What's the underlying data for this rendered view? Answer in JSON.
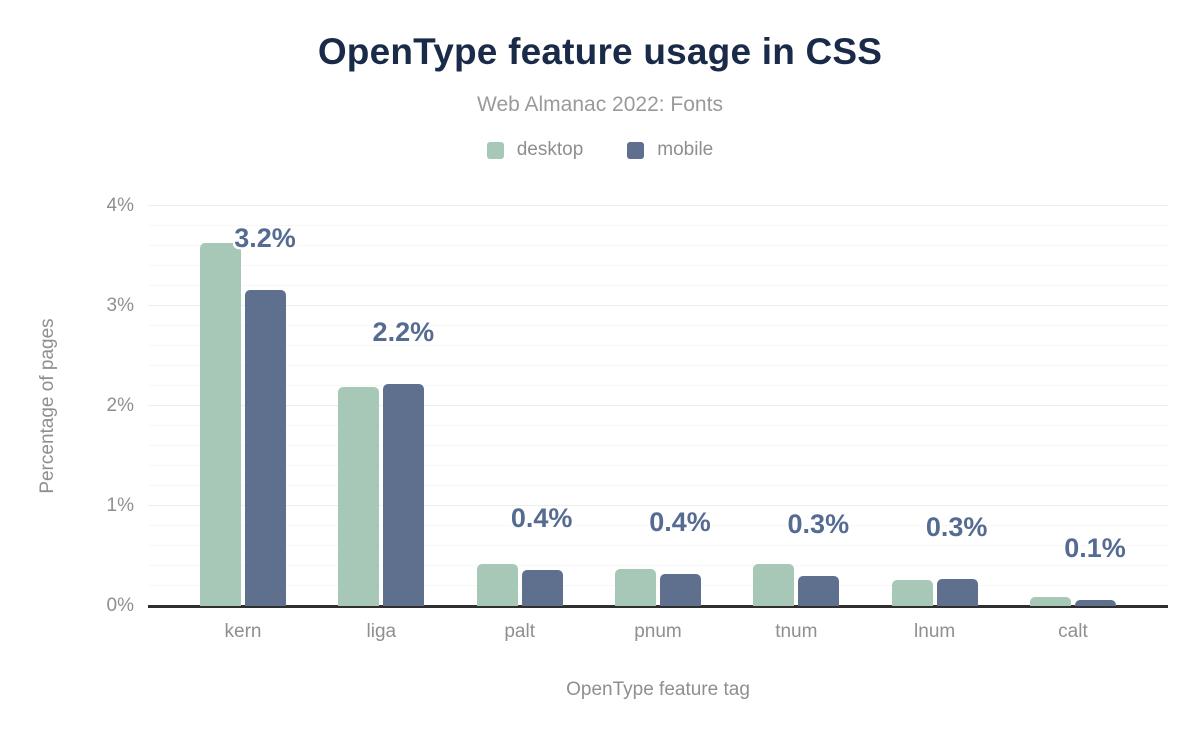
{
  "chart_data": {
    "type": "bar",
    "title": "OpenType feature usage in CSS",
    "subtitle": "Web Almanac 2022: Fonts",
    "xlabel": "OpenType feature tag",
    "ylabel": "Percentage of pages",
    "categories": [
      "kern",
      "liga",
      "palt",
      "pnum",
      "tnum",
      "lnum",
      "calt"
    ],
    "series": [
      {
        "name": "desktop",
        "color": "#a7c8b7",
        "values": [
          3.63,
          2.19,
          0.42,
          0.37,
          0.42,
          0.26,
          0.09
        ]
      },
      {
        "name": "mobile",
        "color": "#5f708e",
        "values": [
          3.16,
          2.22,
          0.36,
          0.32,
          0.3,
          0.27,
          0.06
        ]
      }
    ],
    "bar_labels": [
      "3.2%",
      "2.2%",
      "0.4%",
      "0.4%",
      "0.3%",
      "0.3%",
      "0.1%"
    ],
    "y_ticks": [
      "0%",
      "1%",
      "2%",
      "3%",
      "4%"
    ],
    "ylim": [
      0,
      4
    ],
    "grid": {
      "major_step": 1,
      "minor_step": 0.2,
      "on": true
    },
    "legend_position": "top"
  },
  "colors": {
    "background": "#ffffff",
    "title": "#1a2b49",
    "subtitle": "#9a9a9a",
    "axis_text": "#8f8f8f",
    "axis_line": "#2f2f2f",
    "gridline_major": "#ececec",
    "gridline_minor": "#f7f7f7",
    "bar_label": "#566b91",
    "bar_label_halo": "#ffffff"
  }
}
